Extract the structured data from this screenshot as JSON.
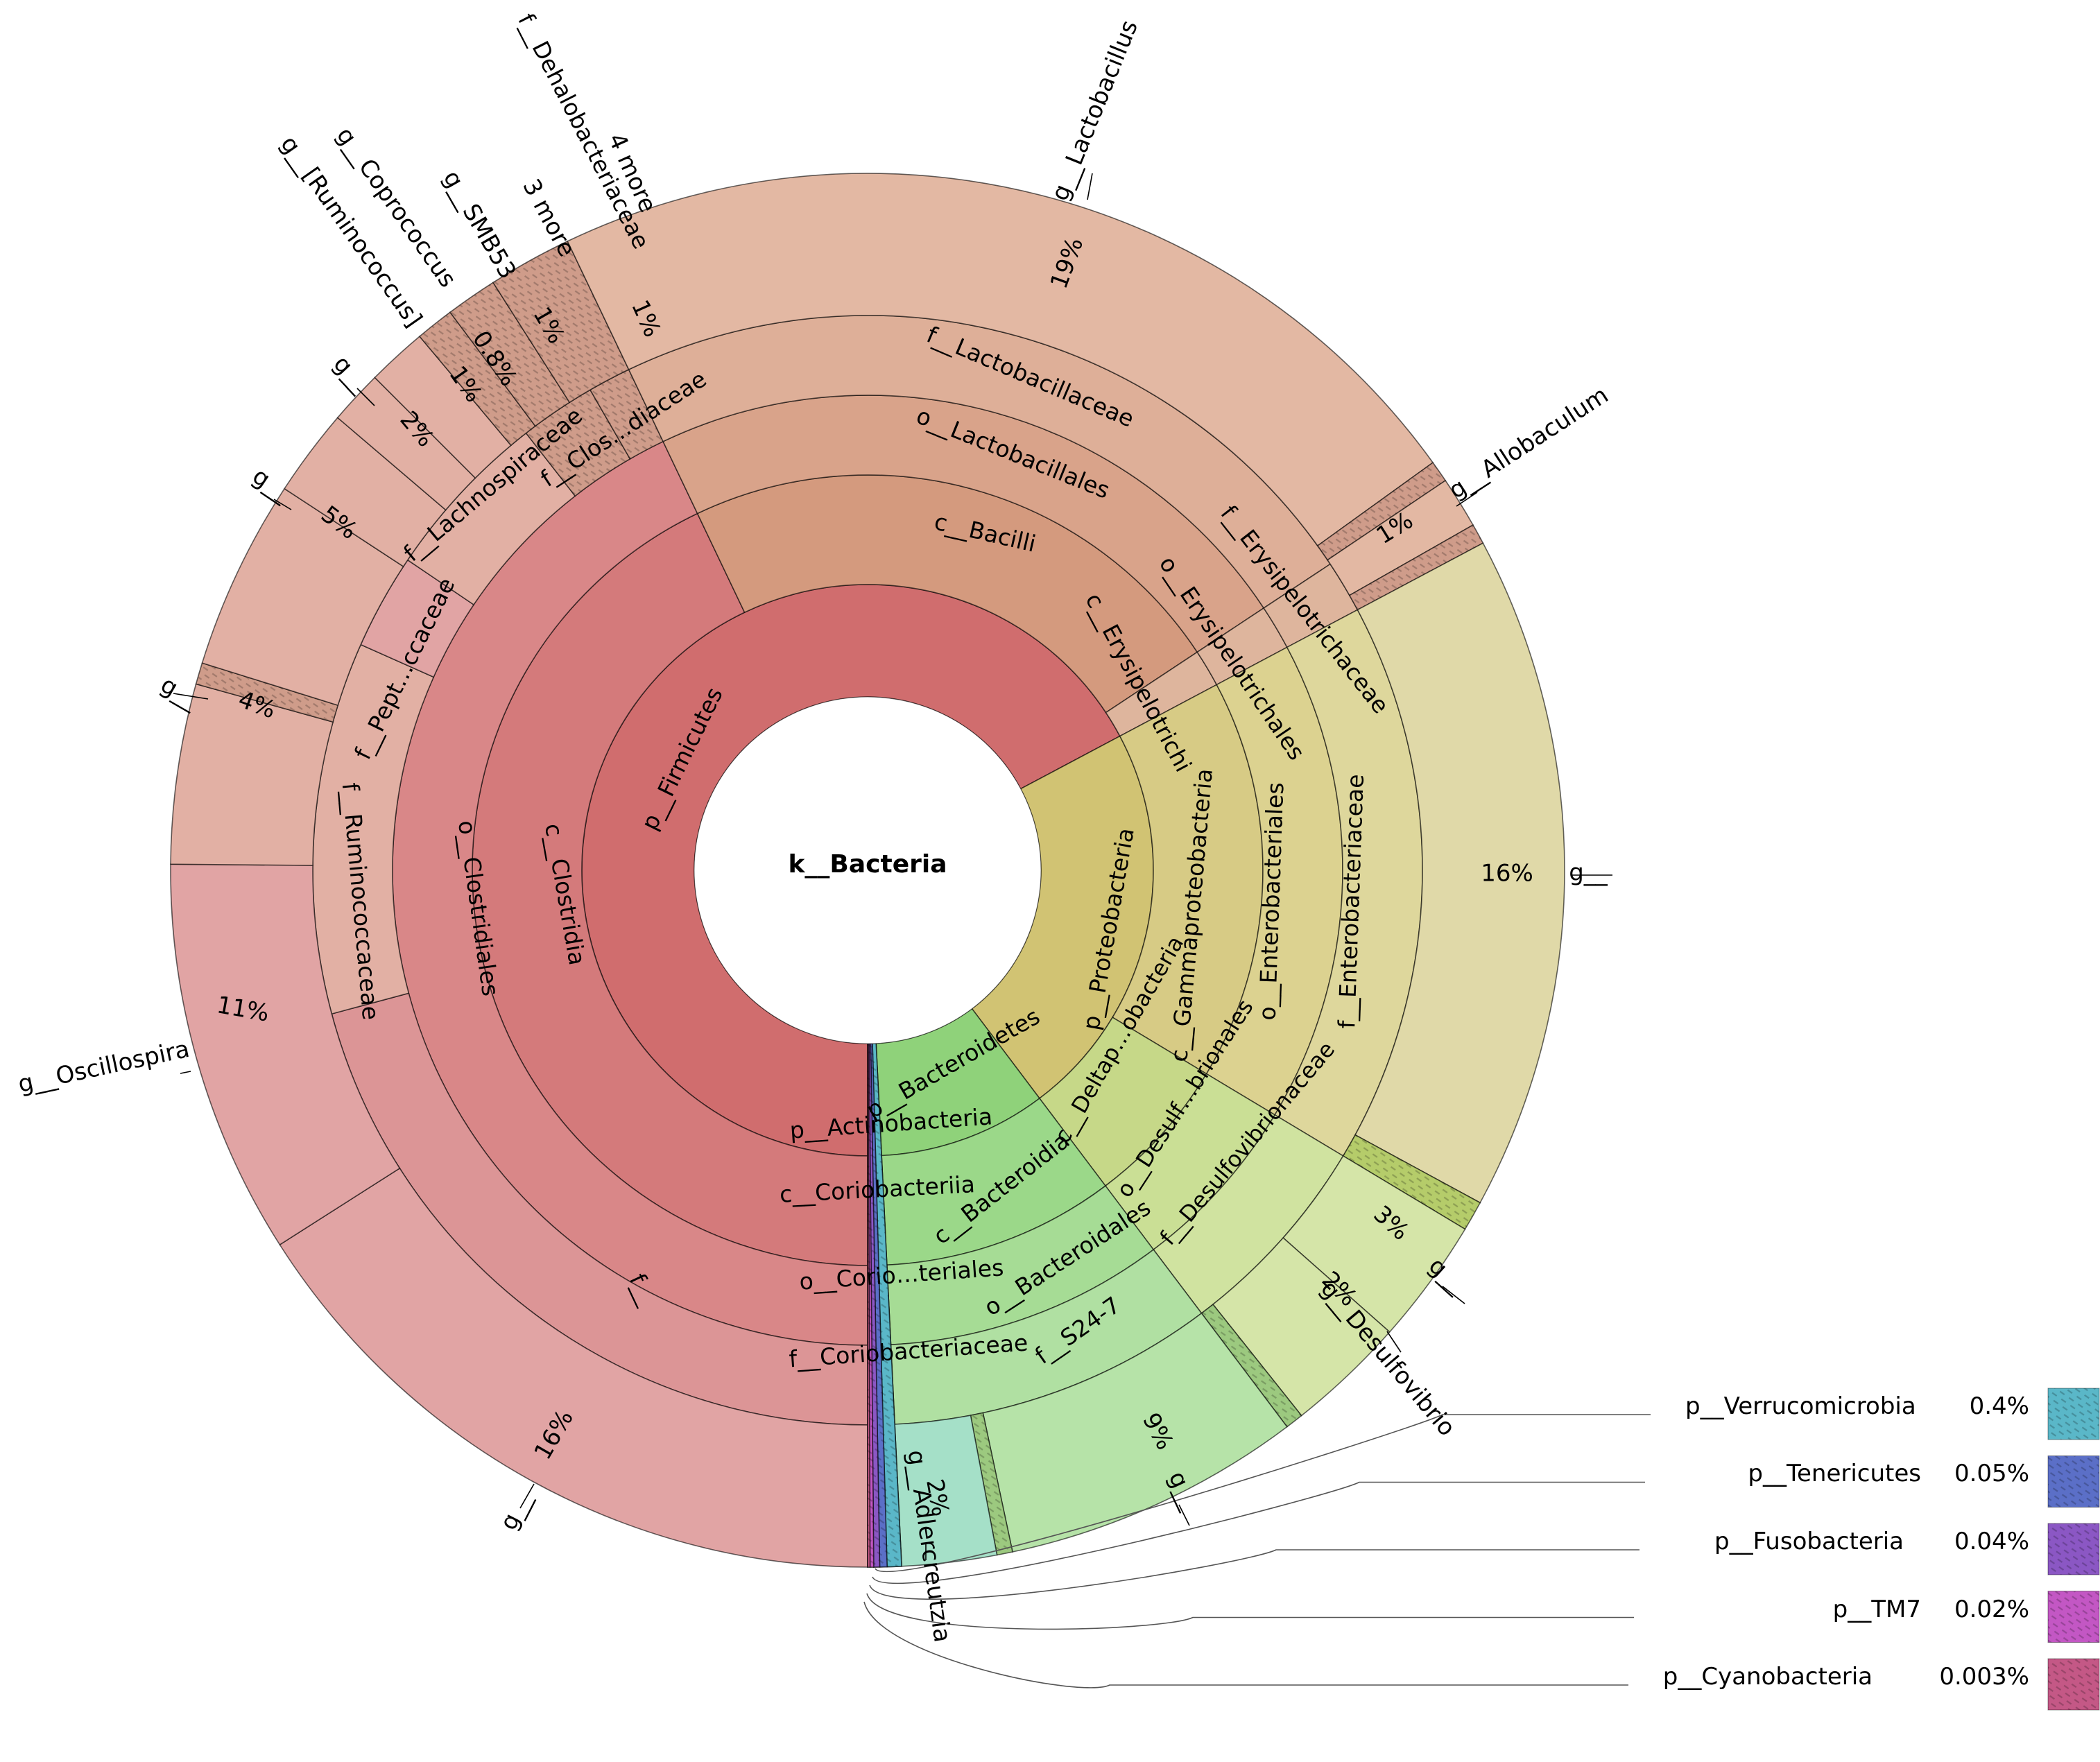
{
  "center_label": "k__Bacteria",
  "colors": {
    "firmicutes_p": "#d06d6e",
    "firmicutes_c": "#d47a7b",
    "firmicutes_o": "#d98788",
    "firmicutes_f": "#dc9596",
    "firmicutes_g": "#e1a4a4",
    "bacilli_c": "#d49a7e",
    "bacilli_o": "#d9a38a",
    "bacilli_f": "#deaf98",
    "bacilli_g": "#e3b8a3",
    "clostridia_g_alt": "#e2b0a4",
    "erysipelo": "#deb59d",
    "proteo_p": "#d1c373",
    "proteo_c": "#d7cb85",
    "proteo_o": "#dcd290",
    "proteo_f": "#ded79c",
    "proteo_g": "#e0d9a8",
    "deltap": "#c6d888",
    "deltap_o": "#cadf95",
    "deltap_f": "#d0e3a0",
    "deltap_g": "#d5e5a8",
    "bacteroidetes_p": "#8fd27a",
    "bacteroidetes_c": "#9bd889",
    "bacteroidetes_o": "#a6dc95",
    "bacteroidetes_f": "#b0e0a2",
    "bacteroidetes_g": "#b6e3a8",
    "actino_p": "#6ccc9c",
    "actino_c": "#7ad3a8",
    "actino_o": "#8ad7b3",
    "actino_f": "#97dbbd",
    "actino_g": "#a5e0c8",
    "hatch_rose": "#cf9c8a",
    "hatch_green": "#9cc97f",
    "hatch_lime": "#b5cc6a",
    "verrucomicrobia": "#5ab7c8",
    "tenericutes": "#5b6fc7",
    "fusobacteria": "#8b57c4",
    "tm7": "#c357c4",
    "cyanobacteria": "#c45886"
  },
  "chart_data": {
    "type": "sunburst",
    "root": "k__Bacteria",
    "phyla": [
      {
        "name": "p__Firmicutes",
        "children": [
          "c__Clostridia",
          "c__Bacilli",
          "c__Erysipelotrichi"
        ]
      },
      {
        "name": "p__Proteobacteria",
        "children": [
          "c__Gammaproteobacteria",
          "c__Deltap…obacteria"
        ]
      },
      {
        "name": "p__Bacteroidetes",
        "children": [
          "c__Bacteroidia"
        ]
      },
      {
        "name": "p__Actinobacteria",
        "children": [
          "c__Coriobacteriia"
        ]
      }
    ],
    "genera": [
      {
        "name": "g__Lactobacillus",
        "percent": "19%"
      },
      {
        "name": "g__",
        "lineage": "f__Ruminococcaceae",
        "percent": "16%"
      },
      {
        "name": "g__",
        "lineage": "f__Enterobacteriaceae",
        "percent": "16%"
      },
      {
        "name": "g__Oscillospira",
        "percent": "11%"
      },
      {
        "name": "g__",
        "lineage": "f__S24-7",
        "percent": "9%"
      },
      {
        "name": "g__",
        "lineage": "f__Lachnospiraceae",
        "percent": "5%"
      },
      {
        "name": "g__",
        "lineage": "f__Pept…ccaceae",
        "percent": "4%"
      },
      {
        "name": "g__",
        "lineage": "f__Desulf…",
        "percent": "3%"
      },
      {
        "name": "g__",
        "percent": "2%"
      },
      {
        "name": "g__Desulfovibrio",
        "percent": "2%"
      },
      {
        "name": "g__Adlercreutzia",
        "percent": "2%"
      },
      {
        "name": "g__Coprococcus",
        "percent": "1%"
      },
      {
        "name": "g__SMB53",
        "percent": "1%"
      },
      {
        "name": "g__Allobaculum",
        "percent": "1%"
      },
      {
        "name": "4 more",
        "percent": "1%"
      },
      {
        "name": "g__[Ruminococcus]",
        "percent": "0.8%"
      },
      {
        "name": "3 more"
      }
    ],
    "legend": [
      {
        "name": "p__Verrucomicrobia",
        "percent": "0.4%"
      },
      {
        "name": "p__Tenericutes",
        "percent": "0.05%"
      },
      {
        "name": "p__Fusobacteria",
        "percent": "0.04%"
      },
      {
        "name": "p__TM7",
        "percent": "0.02%"
      },
      {
        "name": "p__Cyanobacteria",
        "percent": "0.003%"
      }
    ]
  },
  "labels": {
    "p_firmicutes": "p__Firmicutes",
    "c_clostridia": "c__Clostridia",
    "o_clostridiales": "o__Clostridiales",
    "f_ruminococcaceae": "f__Ruminococcaceae",
    "f_pept": "f__Pept…ccaceae",
    "f_lachno": "f__Lachnospiraceae",
    "f_clos": "f__Clos…diaceae",
    "f_dehalo": "f__Dehalobacteriaceae",
    "f_blank": "f__",
    "c_bacilli": "c__Bacilli",
    "o_lactobacillales": "o__Lactobacillales",
    "f_lactobacillaceae": "f__Lactobacillaceae",
    "c_erysipelotrichi": "c__Erysipelotrichi",
    "o_erysipelotrichales": "o__Erysipelotrichales",
    "f_erysipelotrichaceae": "f__Erysipelotrichaceae",
    "p_proteobacteria": "p__Proteobacteria",
    "c_gamma": "c__Gammaproteobacteria",
    "o_entero": "o__Enterobacteriales",
    "f_entero": "f__Enterobacteriaceae",
    "c_deltap": "c__Deltap…obacteria",
    "o_desulf": "o__Desulf…brionales",
    "f_desulfovibrio": "f__Desulfovibrionaceae",
    "p_bacteroidetes": "p__Bacteroidetes",
    "c_bacteroidia": "c__Bacteroidia",
    "o_bacteroidales": "o__Bacteroidales",
    "f_s247": "f__S24-7",
    "p_actino": "p__Actinobacteria",
    "c_corio": "c__Coriobacteriia",
    "o_corio": "o__Corio…teriales",
    "f_corio": "f__Coriobacteriaceae",
    "g_lactobacillus": "g__Lactobacillus",
    "g_allobaculum": "g__Allobaculum",
    "g_blank": "g__",
    "g_desulfovibrio": "g__Desulfovibrio",
    "g_adlercreutzia": "g__Adlercreutzia",
    "g_oscillospira": "g__Oscillospira",
    "g_coprococcus": "g__Coprococcus",
    "g_ruminococcus": "g__[Ruminococcus]",
    "g_smb53": "g__SMB53",
    "three_more": "3 more",
    "four_more": "4 more",
    "pct_19": "19%",
    "pct_16": "16%",
    "pct_11": "11%",
    "pct_9": "9%",
    "pct_5": "5%",
    "pct_4": "4%",
    "pct_3": "3%",
    "pct_2": "2%",
    "pct_1": "1%",
    "pct_08": "0.8%"
  }
}
